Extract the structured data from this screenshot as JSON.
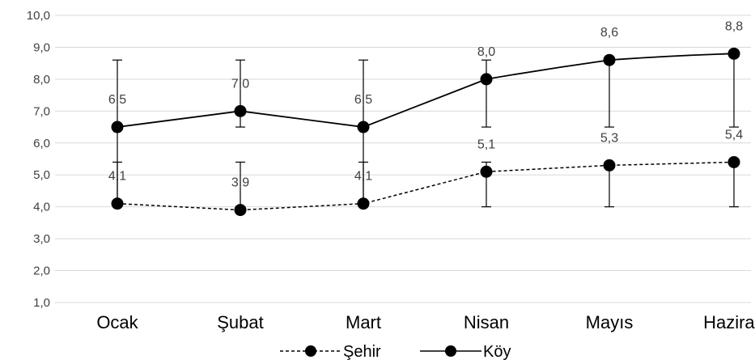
{
  "chart_data": {
    "type": "line",
    "categories": [
      "Ocak",
      "Şubat",
      "Mart",
      "Nisan",
      "Mayıs",
      "Haziran"
    ],
    "ylim": [
      1.0,
      10.0
    ],
    "yticks": [
      "1,0",
      "2,0",
      "3,0",
      "4,0",
      "5,0",
      "6,0",
      "7,0",
      "8,0",
      "9,0",
      "10,0"
    ],
    "grid": true,
    "legend_position": "bottom",
    "series": [
      {
        "name": "Şehir",
        "style": "dashed",
        "color": "#000000",
        "values": [
          4.1,
          3.9,
          4.1,
          5.1,
          5.3,
          5.4
        ],
        "labels": [
          "4,1",
          "3,9",
          "4,1",
          "5,1",
          "5,3",
          "5,4"
        ],
        "error_low": [
          4.0,
          3.9,
          4.0,
          4.0,
          4.0,
          4.0
        ],
        "error_high": [
          5.4,
          5.4,
          5.4,
          5.4,
          5.4,
          5.4
        ]
      },
      {
        "name": "Köy",
        "style": "solid",
        "color": "#000000",
        "values": [
          6.5,
          7.0,
          6.5,
          8.0,
          8.6,
          8.8
        ],
        "labels": [
          "6,5",
          "7,0",
          "6,5",
          "8,0",
          "8,6",
          "8,8"
        ],
        "error_low": [
          4.0,
          6.5,
          4.0,
          6.5,
          6.5,
          6.5
        ],
        "error_high": [
          8.6,
          8.6,
          8.6,
          8.6,
          8.6,
          8.8
        ]
      }
    ]
  }
}
